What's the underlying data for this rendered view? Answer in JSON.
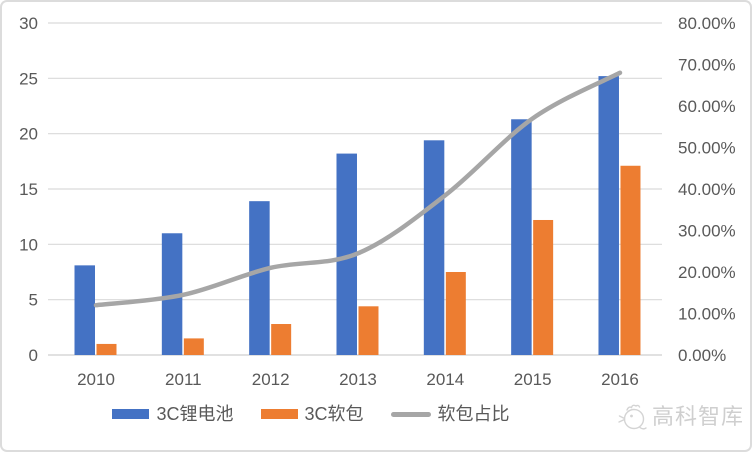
{
  "chart_data": {
    "type": "bar",
    "subtype": "bar-line-combo",
    "title": "",
    "xlabel": "",
    "ylabel": "",
    "grid": true,
    "legend_position": "bottom",
    "categories": [
      "2010",
      "2011",
      "2012",
      "2013",
      "2014",
      "2015",
      "2016"
    ],
    "series": [
      {
        "name": "3C锂电池",
        "type": "bar",
        "axis": "left",
        "color": "#4472C4",
        "values": [
          8.1,
          11.0,
          13.9,
          18.2,
          19.4,
          21.3,
          25.2
        ]
      },
      {
        "name": "3C软包",
        "type": "bar",
        "axis": "left",
        "color": "#ED7D31",
        "values": [
          1.0,
          1.5,
          2.8,
          4.4,
          7.5,
          12.2,
          17.1
        ]
      },
      {
        "name": "软包占比",
        "type": "line",
        "axis": "right",
        "color": "#A6A6A6",
        "unit": "%",
        "values": [
          12.0,
          14.5,
          21.0,
          24.5,
          38.5,
          57.0,
          68.0
        ]
      }
    ],
    "left_axis": {
      "min": 0,
      "max": 30,
      "step": 5,
      "tick_labels": [
        "30",
        "25",
        "20",
        "15",
        "10",
        "5",
        "0"
      ]
    },
    "right_axis": {
      "min": 0,
      "max": 80,
      "step": 10,
      "tick_labels": [
        "80.00%",
        "70.00%",
        "60.00%",
        "50.00%",
        "40.00%",
        "30.00%",
        "20.00%",
        "10.00%",
        "0.00%"
      ]
    }
  },
  "colors": {
    "grid": "#D9D9D9",
    "axis_text": "#595959",
    "card_border": "#DCDCDC",
    "watermark": "#CFCFCF"
  },
  "watermark": {
    "text": "高科智库",
    "icon": "rooster-doodle-icon"
  }
}
